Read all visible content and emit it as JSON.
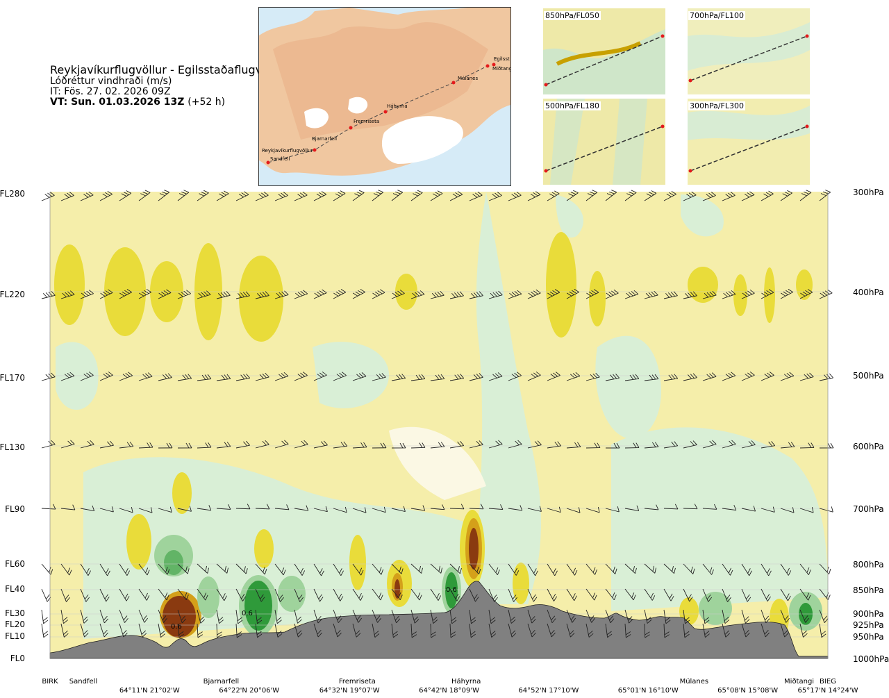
{
  "header": {
    "title": "Reykjavíkurflugvöllur - Egilsstaðaflugvöllur",
    "subtitle": "Lóðréttur vindhraði (m/s)",
    "issue_time": "IT: Fös. 27. 02. 2026 09Z",
    "valid_time": "VT: Sun. 01.03.2026 13Z",
    "lead": "(+52 h)"
  },
  "route_map": {
    "stations": [
      "Reykjavíkurflugvöllur",
      "Sandfell",
      "Bjarnarfell",
      "Fremriseta",
      "Háhyrna",
      "Múlanes",
      "Miðtangi",
      "Egilsst"
    ],
    "route_color": "#e41a1c"
  },
  "level_maps": [
    {
      "label": "850hPa/FL050"
    },
    {
      "label": "700hPa/FL100"
    },
    {
      "label": "500hPa/FL180"
    },
    {
      "label": "300hPa/FL300"
    }
  ],
  "chart_data": {
    "type": "heatmap",
    "title": "Lóðréttur vindhraði (m/s)",
    "y_left_ticks": [
      {
        "label": "FL280",
        "fl": 280
      },
      {
        "label": "FL220",
        "fl": 220
      },
      {
        "label": "FL170",
        "fl": 170
      },
      {
        "label": "FL130",
        "fl": 130
      },
      {
        "label": "FL90",
        "fl": 90
      },
      {
        "label": "FL60",
        "fl": 60
      },
      {
        "label": "FL40",
        "fl": 40
      },
      {
        "label": "FL30",
        "fl": 30
      },
      {
        "label": "FL20",
        "fl": 20
      },
      {
        "label": "FL10",
        "fl": 10
      },
      {
        "label": "FL0",
        "fl": 0
      }
    ],
    "y_right_ticks": [
      "300hPa",
      "400hPa",
      "500hPa",
      "600hPa",
      "700hPa",
      "800hPa",
      "850hPa",
      "900hPa",
      "925hPa",
      "950hPa",
      "1000hPa"
    ],
    "x_station_labels": [
      {
        "label": "BIRK",
        "pos": 0.0
      },
      {
        "label": "Sandfell",
        "pos": 0.043
      },
      {
        "label": "Bjarnarfell",
        "pos": 0.22
      },
      {
        "label": "Fremriseta",
        "pos": 0.395
      },
      {
        "label": "Háhyrna",
        "pos": 0.535
      },
      {
        "label": "Múlanes",
        "pos": 0.828
      },
      {
        "label": "Miðtangi",
        "pos": 0.963
      },
      {
        "label": "BIEG",
        "pos": 1.0
      }
    ],
    "x_coord_labels": [
      {
        "label": "64°11'N 21°02'W",
        "pos": 0.128
      },
      {
        "label": "64°22'N 20°06'W",
        "pos": 0.256
      },
      {
        "label": "64°32'N 19°07'W",
        "pos": 0.385
      },
      {
        "label": "64°42'N 18°09'W",
        "pos": 0.513
      },
      {
        "label": "64°52'N 17°10'W",
        "pos": 0.641
      },
      {
        "label": "65°01'N 16°10'W",
        "pos": 0.769
      },
      {
        "label": "65°08'N 15°08'W",
        "pos": 0.897
      },
      {
        "label": "65°17'N 14°24'W",
        "pos": 1.0
      }
    ],
    "annotations": [
      "0.6",
      "0.6",
      "0.6"
    ],
    "colors": {
      "background": "#f5eeaa",
      "sink_weak": "#d9efd6",
      "sink_mid": "#9fd39c",
      "sink_strong": "#2f9a3a",
      "rise_weak": "#e9dc3a",
      "rise_mid": "#d4a01a",
      "rise_strong": "#8a3a10",
      "terrain": "#808080"
    }
  }
}
